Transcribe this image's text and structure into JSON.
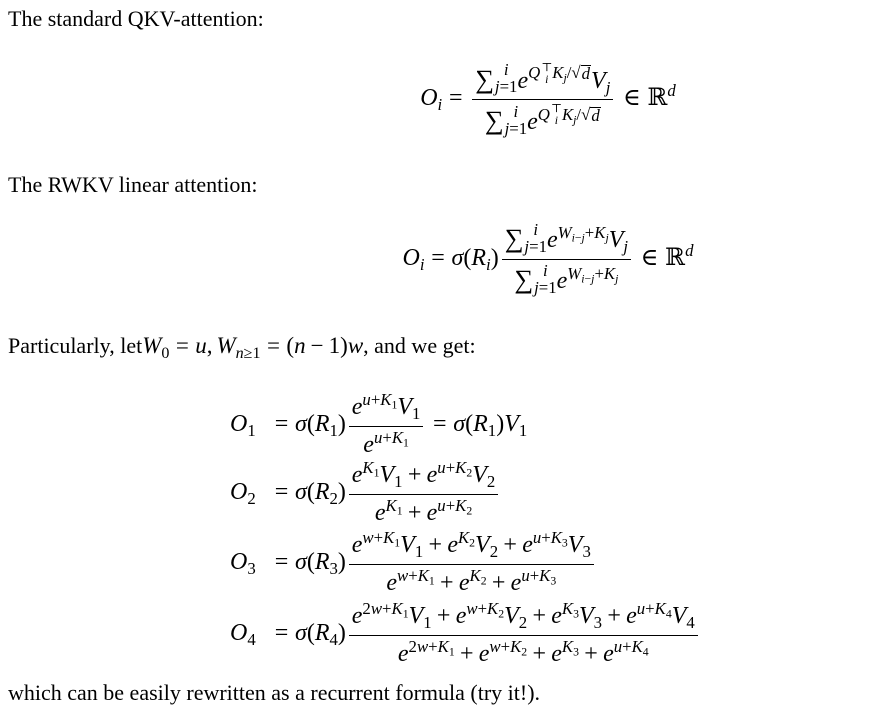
{
  "paragraphs": {
    "p1": "The standard QKV-attention:",
    "p2": "The RWKV linear attention:",
    "p3_before": "Particularly, let ",
    "p3_math": "W_{0} = u, W_{n\\geq1} = (n-1)w",
    "p3_after": ", and we get:",
    "p4": "which can be easily rewritten as a recurrent formula (try it!)."
  },
  "equations": {
    "qkv": "O_{i} = \\frac{\\sum_{j=1}^{i} e^{Q_{i}^{\\top}K_{j}/\\sqrt{d}}V_{j}}{\\sum_{j=1}^{i} e^{Q_{i}^{\\top}K_{j}/\\sqrt{d}}} \\in \\mathbb{R}^{d}",
    "rwkv": "O_{i} = \\sigma(R_{i})\\frac{\\sum_{j=1}^{i} e^{W_{i-j}+K_{j}}V_{j}}{\\sum_{j=1}^{i} e^{W_{i-j}+K_{j}}} \\in \\mathbb{R}^{d}",
    "aligned": [
      {
        "lhs": "O_{1}",
        "rhs": "= \\sigma(R_{1})\\frac{e^{u+K_{1}}V_{1}}{e^{u+K_{1}}} = \\sigma(R_{1})V_{1}"
      },
      {
        "lhs": "O_{2}",
        "rhs": "= \\sigma(R_{2})\\frac{e^{K_{1}}V_{1} + e^{u+K_{2}}V_{2}}{e^{K_{1}} + e^{u+K_{2}}}"
      },
      {
        "lhs": "O_{3}",
        "rhs": "= \\sigma(R_{3})\\frac{e^{w+K_{1}}V_{1} + e^{K_{2}}V_{2} + e^{u+K_{3}}V_{3}}{e^{w+K_{1}} + e^{K_{2}} + e^{u+K_{3}}}"
      },
      {
        "lhs": "O_{4}",
        "rhs": "= \\sigma(R_{4})\\frac{e^{2w+K_{1}}V_{1} + e^{w+K_{2}}V_{2} + e^{K_{3}}V_{3} + e^{u+K_{4}}V_{4}}{e^{2w+K_{1}} + e^{w+K_{2}} + e^{K_{3}} + e^{u+K_{4}}}"
      }
    ]
  }
}
